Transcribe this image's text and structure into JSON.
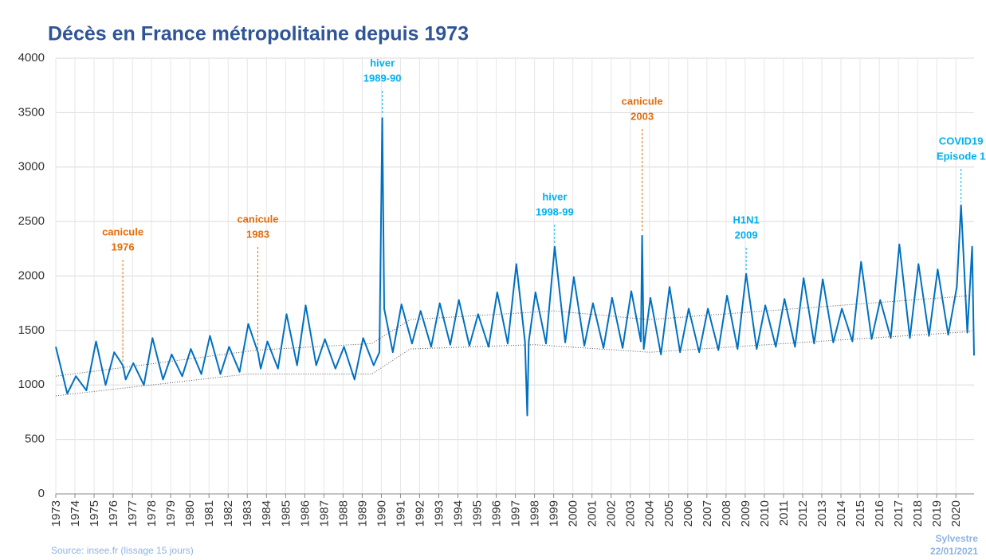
{
  "chart_data": {
    "type": "line",
    "title": "Décès en France métropolitaine depuis 1973",
    "source": "Source: insee.fr (lissage 15 jours)",
    "author": "Sylvestre",
    "date": "22/01/2021",
    "xlim": [
      1973,
      2020.95
    ],
    "ylim": [
      0,
      4000
    ],
    "yticks": [
      0,
      500,
      1000,
      1500,
      2000,
      2500,
      3000,
      3500,
      4000
    ],
    "xticks": [
      1973,
      1974,
      1975,
      1976,
      1977,
      1978,
      1979,
      1980,
      1981,
      1982,
      1983,
      1984,
      1985,
      1986,
      1987,
      1988,
      1989,
      1990,
      1991,
      1992,
      1993,
      1994,
      1995,
      1996,
      1997,
      1998,
      1999,
      2000,
      2001,
      2002,
      2003,
      2004,
      2005,
      2006,
      2007,
      2008,
      2009,
      2010,
      2011,
      2012,
      2013,
      2014,
      2015,
      2016,
      2017,
      2018,
      2019,
      2020
    ],
    "grid": true,
    "series": [
      {
        "color": "#0070c0",
        "style": "solid",
        "x": [
          1973.0,
          1973.6,
          1974.05,
          1974.6,
          1975.1,
          1975.6,
          1976.05,
          1976.5,
          1976.65,
          1977.05,
          1977.6,
          1978.05,
          1978.6,
          1979.05,
          1979.6,
          1980.05,
          1980.6,
          1981.05,
          1981.6,
          1982.05,
          1982.6,
          1983.05,
          1983.55,
          1983.7,
          1984.05,
          1984.6,
          1985.05,
          1985.6,
          1986.05,
          1986.6,
          1987.05,
          1987.6,
          1988.05,
          1988.6,
          1989.05,
          1989.6,
          1989.9,
          1990.05,
          1990.15,
          1990.6,
          1991.05,
          1991.6,
          1992.05,
          1992.6,
          1993.05,
          1993.6,
          1994.05,
          1994.6,
          1995.05,
          1995.6,
          1996.05,
          1996.6,
          1997.05,
          1997.5,
          1997.62,
          1997.7,
          1998.05,
          1998.6,
          1999.05,
          1999.6,
          2000.05,
          2000.6,
          2001.05,
          2001.6,
          2002.05,
          2002.6,
          2003.05,
          2003.55,
          2003.62,
          2003.7,
          2004.05,
          2004.6,
          2005.05,
          2005.6,
          2006.05,
          2006.6,
          2007.05,
          2007.6,
          2008.05,
          2008.6,
          2009.05,
          2009.6,
          2010.05,
          2010.6,
          2011.05,
          2011.6,
          2012.05,
          2012.6,
          2013.05,
          2013.6,
          2014.05,
          2014.6,
          2015.05,
          2015.6,
          2016.05,
          2016.6,
          2017.05,
          2017.6,
          2018.05,
          2018.6,
          2019.05,
          2019.6,
          2020.05,
          2020.27,
          2020.6,
          2020.85,
          2020.95
        ],
        "values": [
          1350,
          920,
          1080,
          950,
          1400,
          1000,
          1300,
          1180,
          1050,
          1200,
          1000,
          1430,
          1050,
          1280,
          1080,
          1330,
          1100,
          1450,
          1100,
          1350,
          1120,
          1560,
          1300,
          1150,
          1400,
          1150,
          1650,
          1180,
          1730,
          1180,
          1420,
          1150,
          1350,
          1050,
          1430,
          1180,
          1300,
          3450,
          1700,
          1300,
          1740,
          1380,
          1680,
          1350,
          1750,
          1370,
          1780,
          1360,
          1650,
          1350,
          1850,
          1380,
          2110,
          1400,
          720,
          1400,
          1850,
          1380,
          2270,
          1390,
          1990,
          1360,
          1750,
          1340,
          1800,
          1340,
          1860,
          1400,
          2370,
          1330,
          1800,
          1280,
          1900,
          1300,
          1700,
          1300,
          1700,
          1320,
          1820,
          1330,
          2020,
          1330,
          1730,
          1350,
          1790,
          1350,
          1980,
          1380,
          1970,
          1390,
          1700,
          1400,
          2130,
          1420,
          1780,
          1430,
          2290,
          1430,
          2110,
          1450,
          2060,
          1460,
          1900,
          2650,
          1480,
          2270,
          1270
        ]
      },
      {
        "color": "#555555",
        "style": "dotted",
        "x": [
          1973.0,
          1983.5,
          1989.5,
          1991.5,
          1999.0,
          2004.0,
          2020.8
        ],
        "values": [
          1080,
          1320,
          1380,
          1600,
          1680,
          1600,
          1820
        ]
      },
      {
        "color": "#555555",
        "style": "dotted",
        "x": [
          1973.0,
          1983.0,
          1989.5,
          1991.5,
          1998.0,
          2004.0,
          2020.8
        ],
        "values": [
          900,
          1100,
          1100,
          1330,
          1370,
          1300,
          1490
        ]
      }
    ],
    "annotations": [
      {
        "lines": [
          "canicule",
          "1976"
        ],
        "x": 1976.5,
        "color": "#e46c0a"
      },
      {
        "lines": [
          "canicule",
          "1983"
        ],
        "x": 1983.55,
        "color": "#e46c0a"
      },
      {
        "lines": [
          "hiver",
          "1989-90"
        ],
        "x": 1990.05,
        "color": "#00b0f0"
      },
      {
        "lines": [
          "hiver",
          "1998-99"
        ],
        "x": 1999.05,
        "color": "#00b0f0"
      },
      {
        "lines": [
          "canicule",
          "2003"
        ],
        "x": 2003.62,
        "color": "#e46c0a"
      },
      {
        "lines": [
          "H1N1",
          "2009"
        ],
        "x": 2009.05,
        "color": "#00b0f0"
      },
      {
        "lines": [
          "COVID19",
          "Episode 1"
        ],
        "x": 2020.27,
        "color": "#00b0f0"
      }
    ]
  }
}
